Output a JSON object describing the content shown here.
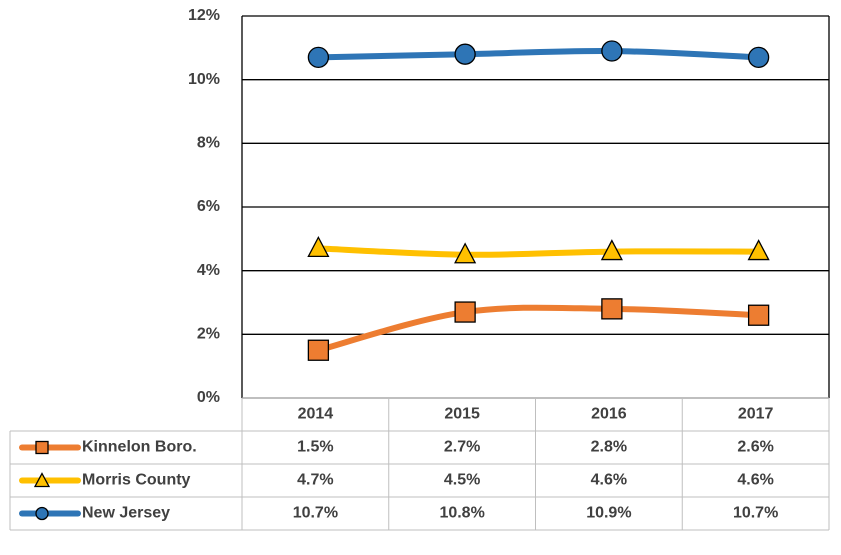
{
  "chart_data": {
    "type": "line",
    "categories": [
      "2014",
      "2015",
      "2016",
      "2017"
    ],
    "series": [
      {
        "name": "Kinnelon Boro.",
        "color": "#ED7D31",
        "marker": "square",
        "values": [
          1.5,
          2.7,
          2.8,
          2.6
        ],
        "value_labels": [
          "1.5%",
          "2.7%",
          "2.8%",
          "2.6%"
        ]
      },
      {
        "name": "Morris County",
        "color": "#FFC000",
        "marker": "triangle",
        "values": [
          4.7,
          4.5,
          4.6,
          4.6
        ],
        "value_labels": [
          "4.7%",
          "4.5%",
          "4.6%",
          "4.6%"
        ]
      },
      {
        "name": "New Jersey",
        "color": "#2E75B6",
        "marker": "circle",
        "values": [
          10.7,
          10.8,
          10.9,
          10.7
        ],
        "value_labels": [
          "10.7%",
          "10.8%",
          "10.9%",
          "10.7%"
        ]
      }
    ],
    "ylim": [
      0,
      12
    ],
    "yticks": [
      {
        "value": 0,
        "label": "0%"
      },
      {
        "value": 2,
        "label": "2%"
      },
      {
        "value": 4,
        "label": "4%"
      },
      {
        "value": 6,
        "label": "6%"
      },
      {
        "value": 8,
        "label": "8%"
      },
      {
        "value": 10,
        "label": "10%"
      },
      {
        "value": 12,
        "label": "12%"
      }
    ],
    "grid": true,
    "smooth": true,
    "data_table": true
  }
}
